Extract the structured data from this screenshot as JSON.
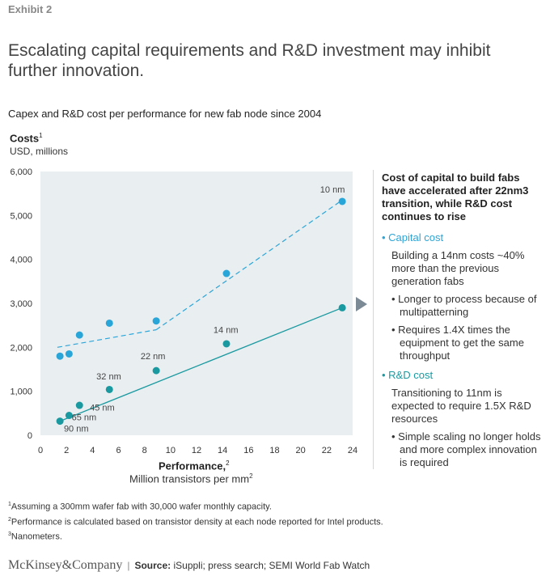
{
  "exhibit": "Exhibit 2",
  "headline": "Escalating capital requirements and R&D investment may inhibit further innovation.",
  "subtitle": "Capex and R&D cost per performance for new fab node since 2004",
  "axes": {
    "y_title": "Costs",
    "y_title_note": "1",
    "y_unit": "USD, millions",
    "x_title": "Performance,",
    "x_title_note": "2",
    "x_unit": "Million transistors per mm",
    "x_unit_sup": "2"
  },
  "chart_data": {
    "type": "scatter",
    "xlim": [
      0,
      24
    ],
    "ylim": [
      0,
      6000
    ],
    "x_ticks": [
      "0",
      "2",
      "4",
      "6",
      "8",
      "10",
      "12",
      "14",
      "16",
      "18",
      "20",
      "22",
      "24"
    ],
    "y_ticks": [
      "0",
      "1,000",
      "2,000",
      "3,000",
      "4,000",
      "5,000",
      "6,000"
    ],
    "grid": false,
    "series": [
      {
        "name": "Capital cost",
        "color": "#2aa5d8",
        "points": [
          {
            "x": 1.5,
            "y": 1800
          },
          {
            "x": 2.2,
            "y": 1850
          },
          {
            "x": 3.0,
            "y": 2280
          },
          {
            "x": 5.3,
            "y": 2550
          },
          {
            "x": 8.9,
            "y": 2600
          },
          {
            "x": 14.3,
            "y": 3680
          },
          {
            "x": 23.2,
            "y": 5320
          }
        ],
        "trend_segments": [
          {
            "from": [
              1.3,
              2000
            ],
            "to": [
              8.9,
              2400
            ]
          },
          {
            "from": [
              8.9,
              2400
            ],
            "to": [
              23.2,
              5350
            ]
          }
        ],
        "point_labels": [
          {
            "text": "10 nm",
            "x": 21.5,
            "y": 5520
          }
        ]
      },
      {
        "name": "R&D cost",
        "color": "#1a9aa0",
        "points": [
          {
            "x": 1.5,
            "y": 320
          },
          {
            "x": 2.2,
            "y": 450
          },
          {
            "x": 3.0,
            "y": 680
          },
          {
            "x": 5.3,
            "y": 1040
          },
          {
            "x": 8.9,
            "y": 1470
          },
          {
            "x": 14.3,
            "y": 2080
          },
          {
            "x": 23.2,
            "y": 2900
          }
        ],
        "trend_segments": [
          {
            "from": [
              1.5,
              320
            ],
            "to": [
              23.2,
              2900
            ]
          }
        ],
        "point_labels": [
          {
            "text": "90 nm",
            "x": 1.8,
            "y": 80
          },
          {
            "text": "65 nm",
            "x": 2.4,
            "y": 340
          },
          {
            "text": "45 nm",
            "x": 3.8,
            "y": 560
          },
          {
            "text": "32 nm",
            "x": 4.3,
            "y": 1270
          },
          {
            "text": "22 nm",
            "x": 7.7,
            "y": 1730
          },
          {
            "text": "14 nm",
            "x": 13.3,
            "y": 2330
          }
        ]
      }
    ]
  },
  "panel": {
    "title": "Cost of capital to build fabs have accelerated after 22nm3 transition, while R&D cost continues to rise",
    "capital_heading": "• Capital cost",
    "capital_text": "Building a 14nm costs ~40% more than the previous generation fabs",
    "capital_bullets": [
      "• Longer to process because of multipatterning",
      "• Requires 1.4X times the equipment to get the same throughput"
    ],
    "rnd_heading": "• R&D cost",
    "rnd_text": "Transitioning to 11nm is expected to require 1.5X R&D resources",
    "rnd_bullets": [
      "• Simple scaling no longer holds and more complex innovation is required"
    ]
  },
  "footnotes": {
    "note1_mark": "1",
    "note1": "Assuming a 300mm wafer fab with 30,000 wafer monthly capacity.",
    "note2_mark": "2",
    "note2": "Performance is calculated based on transistor density at each node reported for Intel products.",
    "note3_mark": "3",
    "note3": "Nanometers."
  },
  "footer": {
    "logo": "McKinsey&Company",
    "separator": "|",
    "source_label": "Source:",
    "source_text": " iSuppli; press search; SEMI World Fab Watch"
  }
}
